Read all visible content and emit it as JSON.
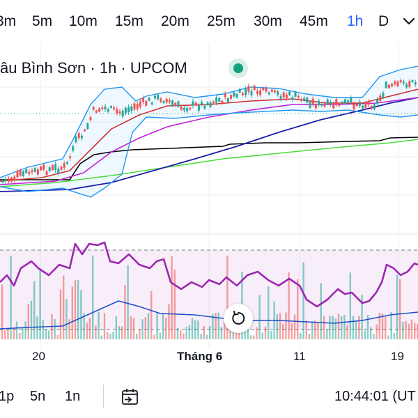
{
  "intervals": {
    "items": [
      {
        "label": "3m"
      },
      {
        "label": "5m"
      },
      {
        "label": "10m"
      },
      {
        "label": "15m"
      },
      {
        "label": "20m"
      },
      {
        "label": "25m"
      },
      {
        "label": "30m"
      },
      {
        "label": "45m"
      },
      {
        "label": "1h",
        "active": true
      },
      {
        "label": "D"
      }
    ],
    "more_icon": "chevron-down-icon"
  },
  "legend": {
    "symbol_title": "âu Bình Sơn · 1h · UPCOM",
    "status_icon": "market-open-dot-icon",
    "status_color": "#11a37f"
  },
  "chart_data": {
    "type": "candlestick",
    "panes": [
      "price",
      "rsi-volume"
    ],
    "indicators": [
      "bollinger-bands",
      "moving-averages",
      "rsi",
      "volume"
    ],
    "colors": {
      "up": "#26a69a",
      "down": "#ef5350",
      "bollinger": "#2196f3",
      "ma_red": "#d32f2f",
      "ma_magenta": "#c21fd6",
      "ma_blue": "#1a1fa8",
      "ma_black": "#000000",
      "ma_green": "#4cdb39",
      "rsi": "#9c27b0"
    },
    "time_axis_labels": [
      "20",
      "Tháng 6",
      "11",
      "19"
    ]
  },
  "reset_button_icon": "reset-rotate-icon",
  "bottom": {
    "items": [
      {
        "label": "1p"
      },
      {
        "label": "5n"
      },
      {
        "label": "1n"
      }
    ],
    "date_range_icon": "calendar-goto-icon",
    "clock": "10:44:01 (UT"
  }
}
